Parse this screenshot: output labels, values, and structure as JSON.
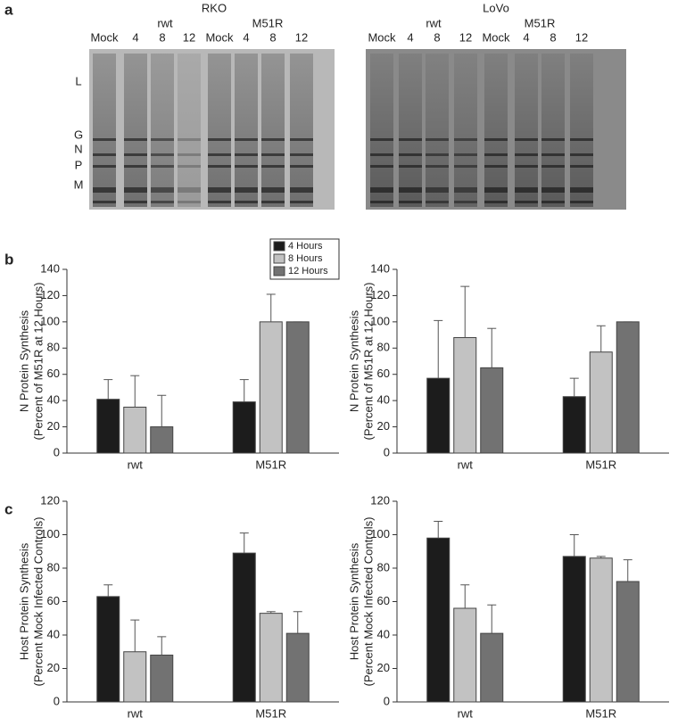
{
  "figure": {
    "panels": [
      "a",
      "b",
      "c"
    ],
    "gels": [
      {
        "title": "RKO",
        "groups": [
          "rwt",
          "M51R"
        ],
        "lanes": [
          "Mock",
          "4",
          "8",
          "12",
          "Mock",
          "4",
          "8",
          "12"
        ],
        "bands": [
          "L",
          "G",
          "N",
          "P",
          "M"
        ]
      },
      {
        "title": "LoVo",
        "groups": [
          "rwt",
          "M51R"
        ],
        "lanes": [
          "Mock",
          "4",
          "8",
          "12",
          "Mock",
          "4",
          "8",
          "12"
        ]
      }
    ]
  },
  "chart_data": [
    {
      "type": "bar",
      "ylabel": [
        "N Protein Synthesis",
        "(Percent of M51R at 12 Hours)"
      ],
      "categories": [
        "rwt",
        "M51R"
      ],
      "series": [
        {
          "name": "4 Hours",
          "color": "#1c1c1c",
          "values": [
            41,
            39
          ],
          "errors": [
            15,
            17
          ]
        },
        {
          "name": "8 Hours",
          "color": "#c2c2c2",
          "values": [
            35,
            100
          ],
          "errors": [
            24,
            21
          ]
        },
        {
          "name": "12 Hours",
          "color": "#727272",
          "values": [
            20,
            100
          ],
          "errors": [
            24,
            0
          ]
        }
      ],
      "ylim": [
        0,
        140
      ],
      "yticks": [
        0,
        20,
        40,
        60,
        80,
        100,
        120,
        140
      ],
      "legend": "top-right"
    },
    {
      "type": "bar",
      "ylabel": [
        "N Protein Synthesis",
        "(Percent of M51R at 12 Hours)"
      ],
      "categories": [
        "rwt",
        "M51R"
      ],
      "series": [
        {
          "name": "4 Hours",
          "color": "#1c1c1c",
          "values": [
            57,
            43
          ],
          "errors": [
            44,
            14
          ]
        },
        {
          "name": "8 Hours",
          "color": "#c2c2c2",
          "values": [
            88,
            77
          ],
          "errors": [
            39,
            20
          ]
        },
        {
          "name": "12 Hours",
          "color": "#727272",
          "values": [
            65,
            100
          ],
          "errors": [
            30,
            0
          ]
        }
      ],
      "ylim": [
        0,
        140
      ],
      "yticks": [
        0,
        20,
        40,
        60,
        80,
        100,
        120,
        140
      ]
    },
    {
      "type": "bar",
      "ylabel": [
        "Host Protein Synthesis",
        "(Percent Mock Infected Controls)"
      ],
      "categories": [
        "rwt",
        "M51R"
      ],
      "series": [
        {
          "name": "4 Hours",
          "color": "#1c1c1c",
          "values": [
            63,
            89
          ],
          "errors": [
            7,
            12
          ]
        },
        {
          "name": "8 Hours",
          "color": "#c2c2c2",
          "values": [
            30,
            53
          ],
          "errors": [
            19,
            1
          ]
        },
        {
          "name": "12 Hours",
          "color": "#727272",
          "values": [
            28,
            41
          ],
          "errors": [
            11,
            13
          ]
        }
      ],
      "ylim": [
        0,
        120
      ],
      "yticks": [
        0,
        20,
        40,
        60,
        80,
        100,
        120
      ]
    },
    {
      "type": "bar",
      "ylabel": [
        "Host Protein Synthesis",
        "(Percent Mock Infected Controls)"
      ],
      "categories": [
        "rwt",
        "M51R"
      ],
      "series": [
        {
          "name": "4 Hours",
          "color": "#1c1c1c",
          "values": [
            98,
            87
          ],
          "errors": [
            10,
            13
          ]
        },
        {
          "name": "8 Hours",
          "color": "#c2c2c2",
          "values": [
            56,
            86
          ],
          "errors": [
            14,
            1
          ]
        },
        {
          "name": "12 Hours",
          "color": "#727272",
          "values": [
            41,
            72
          ],
          "errors": [
            17,
            13
          ]
        }
      ],
      "ylim": [
        0,
        120
      ],
      "yticks": [
        0,
        20,
        40,
        60,
        80,
        100,
        120
      ]
    }
  ]
}
